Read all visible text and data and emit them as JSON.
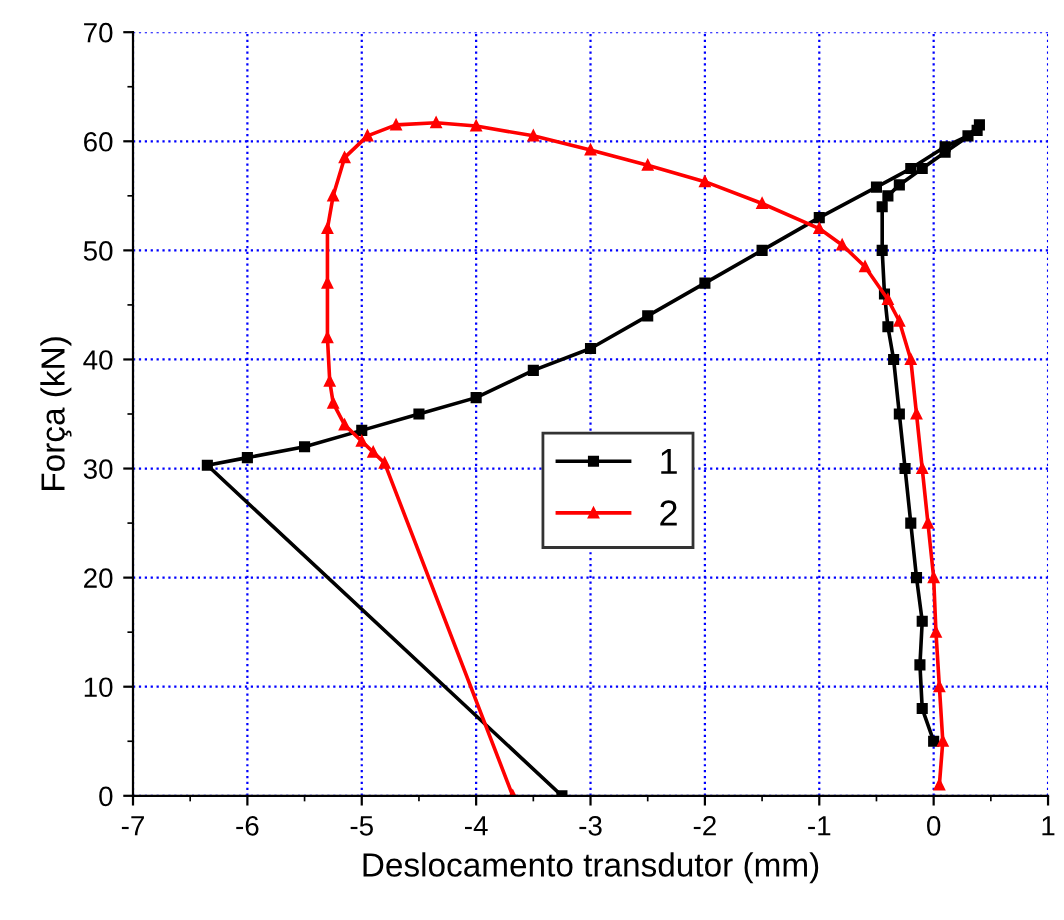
{
  "chart_data": {
    "type": "line",
    "xlabel": "Deslocamento transdutor (mm)",
    "ylabel": "Força (kN)",
    "xlim": [
      -7,
      1
    ],
    "ylim": [
      0,
      70
    ],
    "xticks": [
      -7,
      -6,
      -5,
      -4,
      -3,
      -2,
      -1,
      0,
      1
    ],
    "yticks": [
      0,
      10,
      20,
      30,
      40,
      50,
      60,
      70
    ],
    "grid": true,
    "legend": "center",
    "line_style": "solid",
    "series": [
      {
        "name": "1",
        "color": "#000000",
        "marker": "square",
        "x": [
          0.0,
          -0.1,
          -0.12,
          -0.1,
          -0.15,
          -0.2,
          -0.25,
          -0.3,
          -0.35,
          -0.4,
          -0.43,
          -0.45,
          -0.45,
          -0.4,
          -0.3,
          -0.1,
          0.1,
          0.38,
          0.4,
          0.3,
          0.1,
          -0.2,
          -0.5,
          -1.0,
          -1.5,
          -2.0,
          -2.5,
          -3.0,
          -3.5,
          -4.0,
          -4.5,
          -5.0,
          -5.5,
          -6.0,
          -6.35,
          -3.25
        ],
        "values": [
          5,
          8,
          12,
          16,
          20,
          25,
          30,
          35,
          40,
          43,
          46,
          50,
          54,
          55,
          56,
          57.5,
          59,
          61,
          61.5,
          60.5,
          59.5,
          57.5,
          55.8,
          53,
          50,
          47,
          44,
          41,
          39,
          36.5,
          35,
          33.5,
          32,
          31,
          30.3,
          0
        ]
      },
      {
        "name": "2",
        "color": "#ff0000",
        "marker": "triangle",
        "x": [
          0.05,
          0.08,
          0.05,
          0.02,
          0.0,
          -0.05,
          -0.1,
          -0.15,
          -0.2,
          -0.3,
          -0.4,
          -0.6,
          -0.8,
          -1.0,
          -1.5,
          -2.0,
          -2.5,
          -3.0,
          -3.5,
          -4.0,
          -4.35,
          -4.7,
          -4.95,
          -5.15,
          -5.25,
          -5.3,
          -5.3,
          -5.3,
          -5.28,
          -5.25,
          -5.15,
          -5.0,
          -4.9,
          -4.8,
          -3.68
        ],
        "values": [
          1,
          5,
          10,
          15,
          20,
          25,
          30,
          35,
          40,
          43.5,
          45.5,
          48.5,
          50.5,
          52,
          54.3,
          56.3,
          57.8,
          59.2,
          60.5,
          61.4,
          61.7,
          61.5,
          60.5,
          58.5,
          55,
          52,
          47,
          42,
          38,
          36,
          34,
          32.5,
          31.5,
          30.5,
          0
        ]
      }
    ]
  }
}
